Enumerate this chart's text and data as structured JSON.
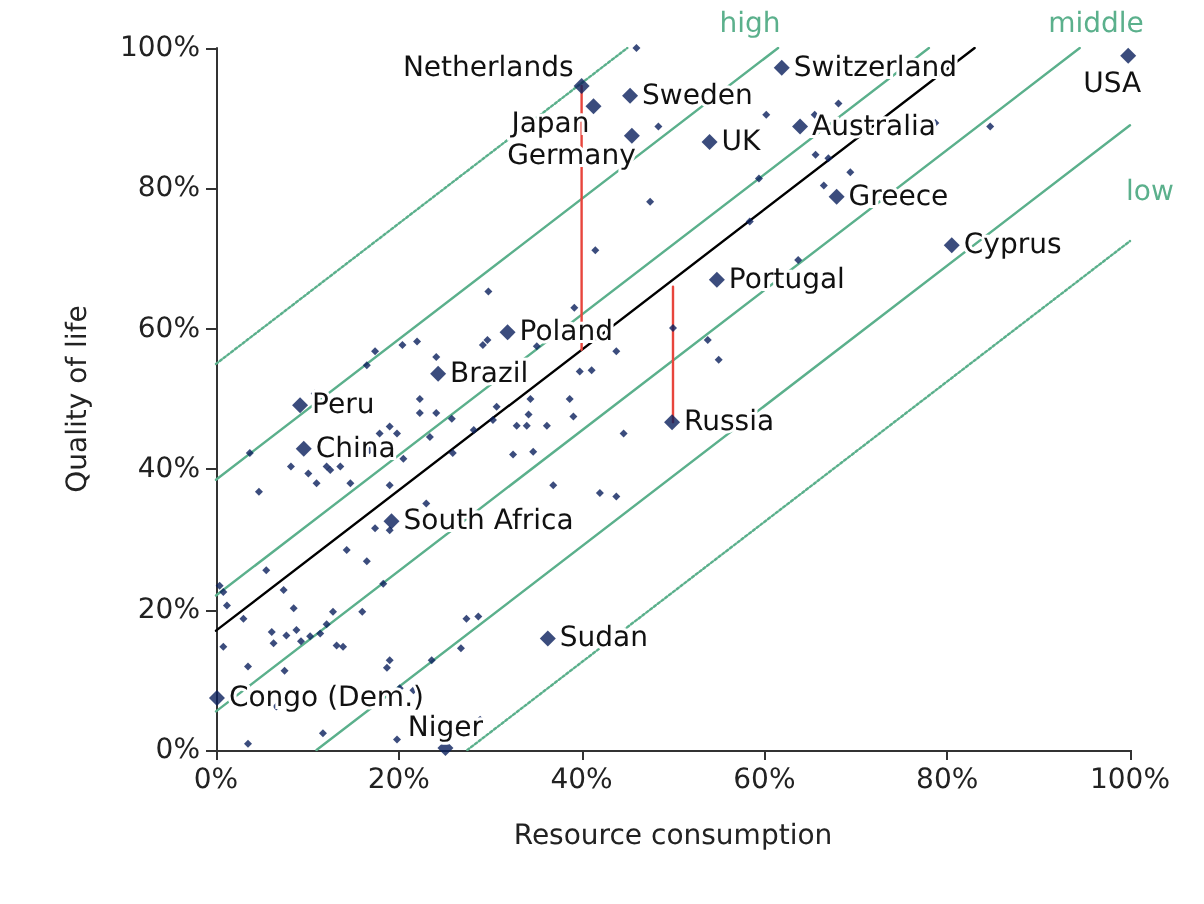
{
  "chart_data": {
    "type": "scatter",
    "xlabel": "Resource consumption",
    "ylabel": "Quality of life",
    "marker": "diamond",
    "grid": false,
    "xlim": [
      0,
      100
    ],
    "ylim": [
      0,
      100
    ],
    "xticks": [
      {
        "value": 0,
        "label": "0%"
      },
      {
        "value": 20,
        "label": "20%"
      },
      {
        "value": 40,
        "label": "40%"
      },
      {
        "value": 60,
        "label": "60%"
      },
      {
        "value": 80,
        "label": "80%"
      },
      {
        "value": 100,
        "label": "100%"
      }
    ],
    "yticks": [
      {
        "value": 0,
        "label": "0%"
      },
      {
        "value": 20,
        "label": "20%"
      },
      {
        "value": 40,
        "label": "40%"
      },
      {
        "value": 60,
        "label": "60%"
      },
      {
        "value": 80,
        "label": "80%"
      },
      {
        "value": 100,
        "label": "100%"
      }
    ],
    "series": [
      {
        "type": "line",
        "color": "#5bb08c",
        "line_style": "dotted",
        "marker": "none",
        "x": [
          0,
          45
        ],
        "values": [
          55,
          100
        ]
      },
      {
        "type": "line",
        "color": "#5bb08c",
        "line_style": "solid",
        "marker": "none",
        "x": [
          0,
          61.5
        ],
        "values": [
          38.5,
          100
        ]
      },
      {
        "type": "line",
        "color": "#5bb08c",
        "line_style": "solid",
        "marker": "none",
        "x": [
          0,
          78
        ],
        "values": [
          22,
          100
        ]
      },
      {
        "type": "line",
        "color": "#5bb08c",
        "line_style": "solid",
        "marker": "none",
        "x": [
          0,
          94.5
        ],
        "values": [
          5.5,
          100
        ]
      },
      {
        "type": "line",
        "color": "#5bb08c",
        "line_style": "solid",
        "marker": "none",
        "x": [
          11,
          100
        ],
        "values": [
          0,
          89
        ]
      },
      {
        "type": "line",
        "color": "#5bb08c",
        "line_style": "dotted",
        "marker": "none",
        "x": [
          27.5,
          100
        ],
        "values": [
          0,
          72.5
        ]
      },
      {
        "type": "line",
        "color": "#000000",
        "line_style": "solid",
        "marker": "none",
        "x": [
          0,
          83
        ],
        "values": [
          17,
          100
        ]
      },
      {
        "type": "line",
        "color": "#e8453c",
        "line_style": "solid",
        "marker": "none",
        "x": [
          40,
          40
        ],
        "values": [
          94.6,
          57
        ]
      },
      {
        "type": "line",
        "color": "#e8453c",
        "line_style": "solid",
        "marker": "none",
        "x": [
          50,
          50
        ],
        "values": [
          46.7,
          66
        ]
      },
      {
        "color": "#0a1f5c",
        "x": [
          3.7,
          8.2,
          10.1,
          11.0,
          12.1,
          12.5,
          13.6,
          14.7,
          4.7,
          19.0,
          17.9,
          19.0,
          19.8,
          16.8,
          20.5,
          22.3,
          22.3,
          24.1,
          25.8,
          23.4,
          25.9,
          28.2,
          30.7,
          30.3,
          34.4,
          34.2,
          32.9,
          34.0,
          32.5,
          34.7,
          36.2,
          38.7,
          39.1,
          44.6,
          36.9,
          42.0,
          43.8,
          23.0,
          19.0,
          17.4,
          14.3,
          16.5,
          5.5,
          7.4,
          0.4,
          0.8,
          1.2,
          3.0,
          8.5,
          6.1,
          6.3,
          7.7,
          8.8,
          9.3,
          10.3,
          11.4,
          12.1,
          12.8,
          13.2,
          13.9,
          16.0,
          18.3,
          0.8,
          3.5,
          7.5,
          18.7,
          19.0,
          20.1,
          21.6,
          23.6,
          26.8,
          27.4,
          28.7,
          3.5,
          11.7,
          19.8,
          6.6,
          28.9,
          46.0,
          48.4,
          47.5,
          41.5,
          29.8,
          39.2,
          50.0,
          53.8,
          43.8,
          39.8,
          41.1,
          35.1,
          29.2,
          29.7,
          24.1,
          22.0,
          20.4,
          17.4,
          16.5,
          10.8,
          55.0,
          60.2,
          65.5,
          68.1,
          78.7,
          84.7,
          65.6,
          67.0,
          69.4,
          66.5,
          59.4,
          58.4,
          63.7
        ],
        "values": [
          42.3,
          40.4,
          39.4,
          38.0,
          40.4,
          39.9,
          40.4,
          38.0,
          36.8,
          37.7,
          45.1,
          46.1,
          45.1,
          42.7,
          41.5,
          50.0,
          48.0,
          48.0,
          47.2,
          44.6,
          42.3,
          45.6,
          48.9,
          47.0,
          50.0,
          47.8,
          46.2,
          46.2,
          42.1,
          42.5,
          46.2,
          50.0,
          47.5,
          45.1,
          37.7,
          36.6,
          36.1,
          35.1,
          31.3,
          31.6,
          28.5,
          26.9,
          25.6,
          22.8,
          23.4,
          22.5,
          20.6,
          18.7,
          20.2,
          16.8,
          15.2,
          16.3,
          17.1,
          15.5,
          16.2,
          16.6,
          17.9,
          19.7,
          14.9,
          14.7,
          19.7,
          23.7,
          14.7,
          11.9,
          11.3,
          11.7,
          12.8,
          8.8,
          8.5,
          12.8,
          14.5,
          18.7,
          19.0,
          0.9,
          2.4,
          1.5,
          6.2,
          4.3,
          100,
          88.8,
          78.1,
          71.2,
          65.3,
          63.0,
          60.1,
          58.4,
          56.8,
          53.9,
          54.1,
          57.5,
          57.7,
          58.4,
          56.0,
          58.2,
          57.7,
          56.8,
          54.8,
          50.8,
          55.6,
          90.5,
          90.5,
          92.1,
          89.3,
          88.8,
          84.8,
          84.3,
          82.3,
          80.4,
          81.4,
          75.3,
          69.8
        ]
      },
      {
        "color": "#0a1f5c",
        "x": [
          40.0,
          41.3,
          45.5,
          45.3,
          61.9,
          54.0,
          63.9,
          99.8,
          67.9,
          54.8,
          80.5,
          31.9,
          24.3,
          9.2,
          9.6,
          19.2,
          49.9,
          36.3,
          0.1,
          25.1
        ],
        "values": [
          94.6,
          91.7,
          87.5,
          93.2,
          97.2,
          86.6,
          88.8,
          98.9,
          78.8,
          67.0,
          71.9,
          59.5,
          53.6,
          49.1,
          42.9,
          32.6,
          46.7,
          15.9,
          7.4,
          0.3
        ]
      }
    ],
    "annotations": [
      "high",
      "middle",
      "low",
      {
        "text": "Netherlands",
        "x": 40.0,
        "y": 94.6
      },
      {
        "text": "Japan",
        "x": 41.3,
        "y": 91.7
      },
      {
        "text": "Germany",
        "x": 45.5,
        "y": 87.5
      },
      {
        "text": "Sweden",
        "x": 45.3,
        "y": 93.2
      },
      {
        "text": "Switzerland",
        "x": 61.9,
        "y": 97.2
      },
      {
        "text": "UK",
        "x": 54.0,
        "y": 86.6
      },
      {
        "text": "Australia",
        "x": 63.9,
        "y": 88.8
      },
      {
        "text": "USA",
        "x": 99.8,
        "y": 98.9
      },
      {
        "text": "Greece",
        "x": 67.9,
        "y": 78.8
      },
      {
        "text": "Portugal",
        "x": 54.8,
        "y": 67.0
      },
      {
        "text": "Cyprus",
        "x": 80.5,
        "y": 71.9
      },
      {
        "text": "Poland",
        "x": 31.9,
        "y": 59.5
      },
      {
        "text": "Brazil",
        "x": 24.3,
        "y": 53.6
      },
      {
        "text": "Peru",
        "x": 9.2,
        "y": 49.1
      },
      {
        "text": "China",
        "x": 9.6,
        "y": 42.9
      },
      {
        "text": "South Africa",
        "x": 19.2,
        "y": 32.6
      },
      {
        "text": "Russia",
        "x": 49.9,
        "y": 46.7
      },
      {
        "text": "Sudan",
        "x": 36.3,
        "y": 15.9
      },
      {
        "text": "Congo (Dem.)",
        "x": 0.1,
        "y": 7.4
      },
      {
        "text": "Niger",
        "x": 25.1,
        "y": 0.3
      }
    ]
  }
}
